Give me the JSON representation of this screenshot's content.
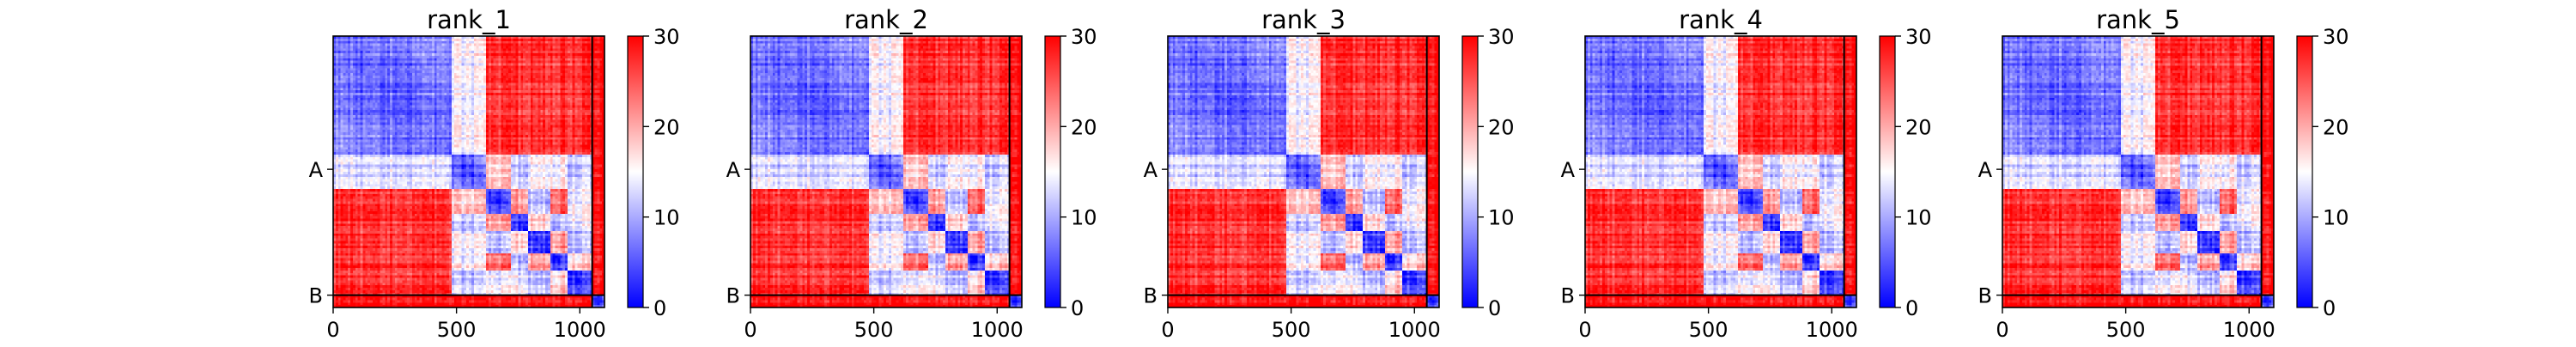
{
  "figure": {
    "colormap": "bwr",
    "colormap_colors": [
      "#0000ff",
      "#ffffff",
      "#ff0000"
    ],
    "frame_color": "#000000"
  },
  "chart_data": [
    {
      "type": "heatmap",
      "title": "rank_1",
      "xlabel": "",
      "ylabel": "",
      "xlim": [
        0,
        1100
      ],
      "ylim": [
        1100,
        0
      ],
      "x_ticks": [
        0,
        500,
        1000
      ],
      "x_tick_labels": [
        "0",
        "500",
        "1000"
      ],
      "y_ticks": [
        540,
        1050
      ],
      "y_tick_labels": [
        "A",
        "B"
      ],
      "chain_boundaries": [
        1050
      ],
      "color_range": [
        0,
        30
      ],
      "colorbar_ticks": [
        0,
        10,
        20,
        30
      ],
      "colorbar_tick_labels": [
        "0",
        "10",
        "20",
        "30"
      ],
      "blocks": [
        [
          0,
          480,
          0
        ],
        [
          480,
          620,
          3
        ],
        [
          620,
          720,
          6
        ],
        [
          720,
          790,
          2
        ],
        [
          790,
          880,
          5
        ],
        [
          880,
          950,
          1
        ],
        [
          950,
          1050,
          4
        ],
        [
          1050,
          1100,
          7
        ]
      ]
    },
    {
      "type": "heatmap",
      "title": "rank_2",
      "xlabel": "",
      "ylabel": "",
      "xlim": [
        0,
        1100
      ],
      "ylim": [
        1100,
        0
      ],
      "x_ticks": [
        0,
        500,
        1000
      ],
      "x_tick_labels": [
        "0",
        "500",
        "1000"
      ],
      "y_ticks": [
        540,
        1050
      ],
      "y_tick_labels": [
        "A",
        "B"
      ],
      "chain_boundaries": [
        1050
      ],
      "color_range": [
        0,
        30
      ],
      "colorbar_ticks": [
        0,
        10,
        20,
        30
      ],
      "colorbar_tick_labels": [
        "0",
        "10",
        "20",
        "30"
      ],
      "blocks": [
        [
          0,
          480,
          0
        ],
        [
          480,
          620,
          3
        ],
        [
          620,
          720,
          6
        ],
        [
          720,
          790,
          2
        ],
        [
          790,
          880,
          5
        ],
        [
          880,
          950,
          1
        ],
        [
          950,
          1050,
          4
        ],
        [
          1050,
          1100,
          7
        ]
      ]
    },
    {
      "type": "heatmap",
      "title": "rank_3",
      "xlabel": "",
      "ylabel": "",
      "xlim": [
        0,
        1100
      ],
      "ylim": [
        1100,
        0
      ],
      "x_ticks": [
        0,
        500,
        1000
      ],
      "x_tick_labels": [
        "0",
        "500",
        "1000"
      ],
      "y_ticks": [
        540,
        1050
      ],
      "y_tick_labels": [
        "A",
        "B"
      ],
      "chain_boundaries": [
        1050
      ],
      "color_range": [
        0,
        30
      ],
      "colorbar_ticks": [
        0,
        10,
        20,
        30
      ],
      "colorbar_tick_labels": [
        "0",
        "10",
        "20",
        "30"
      ],
      "blocks": [
        [
          0,
          480,
          0
        ],
        [
          480,
          620,
          3
        ],
        [
          620,
          720,
          6
        ],
        [
          720,
          790,
          2
        ],
        [
          790,
          880,
          5
        ],
        [
          880,
          950,
          1
        ],
        [
          950,
          1050,
          4
        ],
        [
          1050,
          1100,
          7
        ]
      ]
    },
    {
      "type": "heatmap",
      "title": "rank_4",
      "xlabel": "",
      "ylabel": "",
      "xlim": [
        0,
        1100
      ],
      "ylim": [
        1100,
        0
      ],
      "x_ticks": [
        0,
        500,
        1000
      ],
      "x_tick_labels": [
        "0",
        "500",
        "1000"
      ],
      "y_ticks": [
        540,
        1050
      ],
      "y_tick_labels": [
        "A",
        "B"
      ],
      "chain_boundaries": [
        1050
      ],
      "color_range": [
        0,
        30
      ],
      "colorbar_ticks": [
        0,
        10,
        20,
        30
      ],
      "colorbar_tick_labels": [
        "0",
        "10",
        "20",
        "30"
      ],
      "blocks": [
        [
          0,
          480,
          0
        ],
        [
          480,
          620,
          3
        ],
        [
          620,
          720,
          6
        ],
        [
          720,
          790,
          2
        ],
        [
          790,
          880,
          5
        ],
        [
          880,
          950,
          1
        ],
        [
          950,
          1050,
          4
        ],
        [
          1050,
          1100,
          7
        ]
      ]
    },
    {
      "type": "heatmap",
      "title": "rank_5",
      "xlabel": "",
      "ylabel": "",
      "xlim": [
        0,
        1100
      ],
      "ylim": [
        1100,
        0
      ],
      "x_ticks": [
        0,
        500,
        1000
      ],
      "x_tick_labels": [
        "0",
        "500",
        "1000"
      ],
      "y_ticks": [
        540,
        1050
      ],
      "y_tick_labels": [
        "A",
        "B"
      ],
      "chain_boundaries": [
        1050
      ],
      "color_range": [
        0,
        30
      ],
      "colorbar_ticks": [
        0,
        10,
        20,
        30
      ],
      "colorbar_tick_labels": [
        "0",
        "10",
        "20",
        "30"
      ],
      "blocks": [
        [
          0,
          480,
          0
        ],
        [
          480,
          620,
          3
        ],
        [
          620,
          720,
          6
        ],
        [
          720,
          790,
          2
        ],
        [
          790,
          880,
          5
        ],
        [
          880,
          950,
          1
        ],
        [
          950,
          1050,
          4
        ],
        [
          1050,
          1100,
          7
        ]
      ]
    }
  ]
}
